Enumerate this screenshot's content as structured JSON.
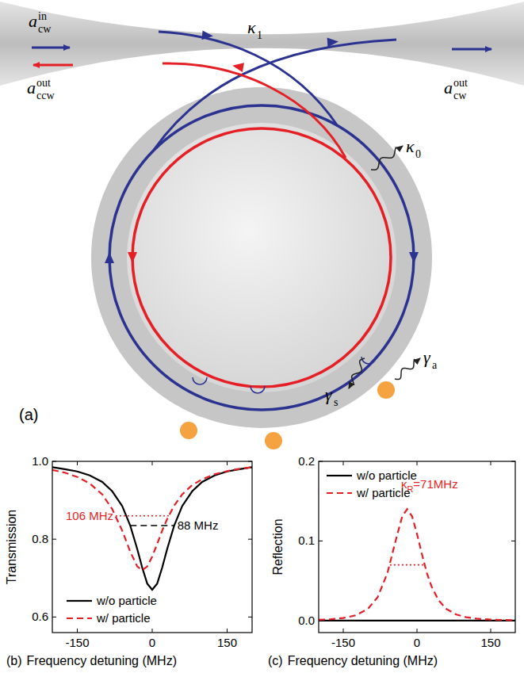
{
  "diagram": {
    "panel": "(a)",
    "labels": [
      {
        "base": "a",
        "sub": "cw",
        "sup": "in"
      },
      {
        "base": "a",
        "sub": "ccw",
        "sup": "out"
      },
      {
        "base": "a",
        "sub": "cw",
        "sup": "out"
      },
      {
        "base": "κ",
        "sub": "1"
      },
      {
        "base": "κ",
        "sub": "0"
      },
      {
        "base": "γ",
        "sub": "a"
      },
      {
        "base": "γ",
        "sub": "s"
      }
    ]
  },
  "chart_data": [
    {
      "type": "line",
      "panel": "(b)",
      "x_label": "Frequency detuning (MHz)",
      "y_label": "Transmission",
      "x": [
        -200,
        -175,
        -150,
        -125,
        -100,
        -80,
        -60,
        -44,
        -30,
        -20,
        -10,
        0,
        10,
        20,
        30,
        44,
        60,
        80,
        100,
        125,
        150,
        175,
        200
      ],
      "xlim": [
        -200,
        200
      ],
      "xticks": [
        -150,
        0,
        150
      ],
      "ylim": [
        0.56,
        1
      ],
      "yticks": [
        0.6,
        0.8,
        {
          "value": 1,
          "label": "1.0"
        }
      ],
      "legend": "lower left",
      "series": [
        {
          "name": "w/o particle",
          "color": "#000000",
          "line_style": "solid",
          "values": [
            0.985,
            0.98,
            0.974,
            0.964,
            0.947,
            0.923,
            0.885,
            0.835,
            0.775,
            0.727,
            0.686,
            0.67,
            0.686,
            0.727,
            0.775,
            0.835,
            0.885,
            0.923,
            0.947,
            0.964,
            0.974,
            0.98,
            0.985
          ]
        },
        {
          "name": "w/ particle",
          "color": "#e41f26",
          "line_style": "dashed",
          "values": [
            0.978,
            0.971,
            0.96,
            0.943,
            0.915,
            0.877,
            0.822,
            0.768,
            0.73,
            0.72,
            0.73,
            0.755,
            0.788,
            0.822,
            0.852,
            0.886,
            0.915,
            0.939,
            0.954,
            0.967,
            0.975,
            0.981,
            0.985
          ]
        }
      ],
      "annotations": [
        {
          "text": "106 MHz",
          "color": "#e41f26",
          "line_style": "dotted",
          "y": 0.86,
          "x": [
            -73,
            33
          ]
        },
        {
          "text": "88 MHz",
          "color": "#000000",
          "line_style": "dashed",
          "y": 0.835,
          "x": [
            -44,
            44
          ]
        }
      ]
    },
    {
      "type": "line",
      "panel": "(c)",
      "x_label": "Frequency detuning (MHz)",
      "y_label": "Reflection",
      "x": [
        -200,
        -175,
        -150,
        -125,
        -100,
        -80,
        -60,
        -44,
        -30,
        -20,
        -10,
        0,
        10,
        20,
        30,
        44,
        60,
        80,
        100,
        125,
        150,
        175,
        200
      ],
      "xlim": [
        -200,
        200
      ],
      "xticks": [
        -150,
        0,
        150
      ],
      "ylim": [
        -0.015,
        0.2
      ],
      "yticks": [
        {
          "value": 0,
          "label": "0.0"
        },
        0.1,
        0.2
      ],
      "legend": "upper left",
      "series": [
        {
          "name": "w/o particle",
          "color": "#000000",
          "line_style": "solid",
          "values": [
            0,
            0,
            0,
            0,
            0,
            0,
            0,
            0,
            0,
            0,
            0,
            0,
            0,
            0,
            0,
            0,
            0,
            0,
            0,
            0,
            0,
            0,
            0
          ]
        },
        {
          "name": "w/ particle",
          "color": "#e41f26",
          "line_style": "dashed",
          "values": [
            0.001,
            0.0018,
            0.0033,
            0.0066,
            0.0146,
            0.0294,
            0.06,
            0.099,
            0.131,
            0.14,
            0.131,
            0.109,
            0.0835,
            0.06,
            0.0423,
            0.0255,
            0.0146,
            0.0077,
            0.0043,
            0.0022,
            0.0013,
            0.0008,
            0.0005
          ]
        }
      ],
      "annotations": [
        {
          "text": "κ",
          "sub": "R",
          "suffix": "=71MHz",
          "color": "#e41f26",
          "line_style": "dotted",
          "y": 0.07,
          "x": [
            -55,
            16
          ]
        }
      ]
    }
  ]
}
